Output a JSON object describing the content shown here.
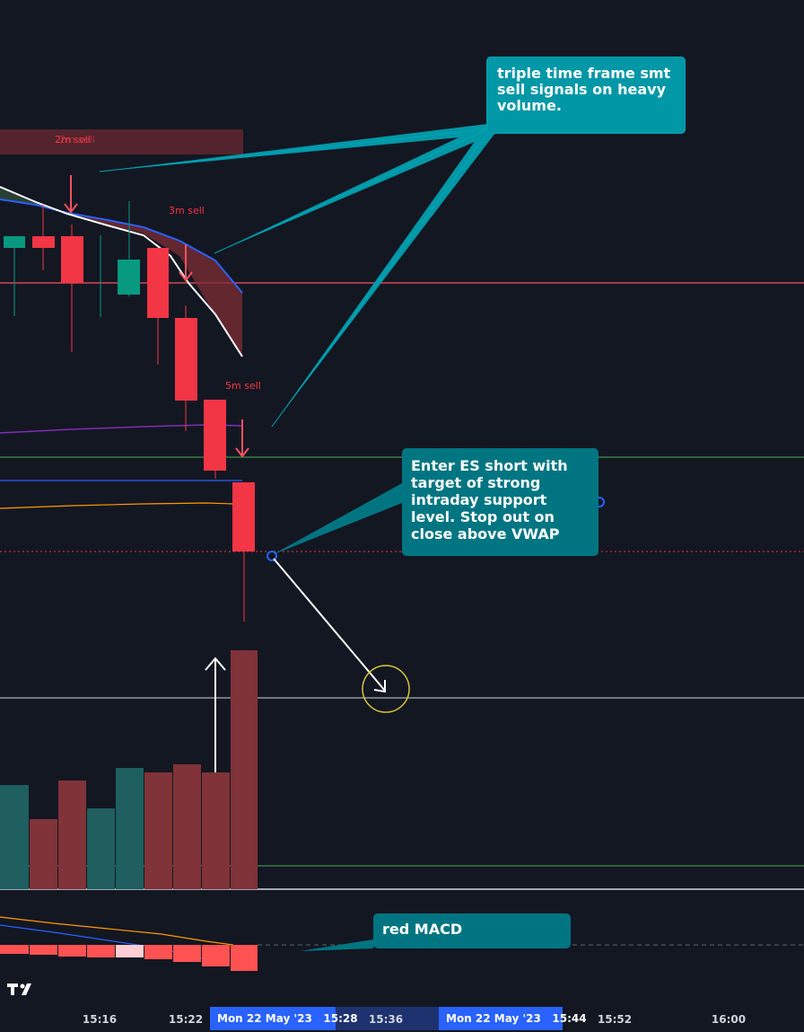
{
  "chart_data": {
    "type": "candlestick",
    "title": "",
    "symbol": "",
    "x_ticks": [
      "15:16",
      "15:22",
      "15:36",
      "15:52",
      "16:00"
    ],
    "crosshair_labels": [
      {
        "date": "Mon 22 May '23",
        "time": "15:28"
      },
      {
        "date": "Mon 22 May '23",
        "time": "15:44"
      }
    ],
    "signals": [
      {
        "label": "2m sell",
        "overlap_label": "2m sell"
      },
      {
        "label": "3m sell"
      },
      {
        "label": "5m sell"
      }
    ],
    "series": [
      {
        "kind": "price-candles"
      },
      {
        "kind": "volume-bars"
      },
      {
        "kind": "macd-histogram"
      }
    ],
    "colors": {
      "background": "#131722",
      "bull": "#089981",
      "bear": "#f23645",
      "bull_volume": "#1f5f5f",
      "bear_volume": "#803338",
      "signal_text": "#f23645",
      "callout": "#007582",
      "callout_bright": "#0097a7",
      "crosshair_label": "#2962ff"
    }
  },
  "annotations": {
    "smt_note": "triple time frame smt sell signals on heavy volume.",
    "entry_note": "Enter ES short with target of strong intraday support level. Stop out on close above VWAP",
    "macd_note": "red MACD"
  }
}
